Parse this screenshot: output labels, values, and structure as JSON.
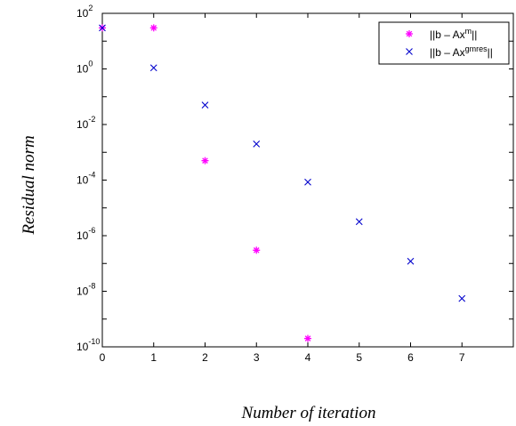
{
  "chart_data": {
    "type": "scatter",
    "xlabel": "Number of iteration",
    "ylabel": "Residual norm",
    "xlim": [
      0,
      8
    ],
    "ylim_log10": [
      -10,
      2
    ],
    "y_scale": "log",
    "x_ticks": [
      "0",
      "1",
      "2",
      "3",
      "4",
      "5",
      "6",
      "7"
    ],
    "y_ticks": [
      {
        "base": "10",
        "exp": "2"
      },
      {
        "base": "10",
        "exp": "0"
      },
      {
        "base": "10",
        "exp": "-2"
      },
      {
        "base": "10",
        "exp": "-4"
      },
      {
        "base": "10",
        "exp": "-6"
      },
      {
        "base": "10",
        "exp": "-8"
      },
      {
        "base": "10",
        "exp": "-10"
      }
    ],
    "legend_position": "top-right",
    "series": [
      {
        "name_main": "||b – Ax",
        "name_sup": "m",
        "name_end": "||",
        "marker": "asterisk",
        "color": "#ff00ff",
        "points": [
          {
            "x": 0,
            "y": 30
          },
          {
            "x": 1,
            "y": 30
          },
          {
            "x": 2,
            "y": 0.0005
          },
          {
            "x": 3,
            "y": 3e-07
          },
          {
            "x": 4,
            "y": 2e-10
          }
        ]
      },
      {
        "name_main": "||b – Ax",
        "name_sup": "gmres",
        "name_end": "||",
        "marker": "x",
        "color": "#0000cc",
        "points": [
          {
            "x": 0,
            "y": 30
          },
          {
            "x": 1,
            "y": 1.1
          },
          {
            "x": 2,
            "y": 0.05
          },
          {
            "x": 3,
            "y": 0.002
          },
          {
            "x": 4,
            "y": 8.5e-05
          },
          {
            "x": 5,
            "y": 3.2e-06
          },
          {
            "x": 6,
            "y": 1.2e-07
          },
          {
            "x": 7,
            "y": 5.5e-09
          }
        ]
      }
    ]
  }
}
